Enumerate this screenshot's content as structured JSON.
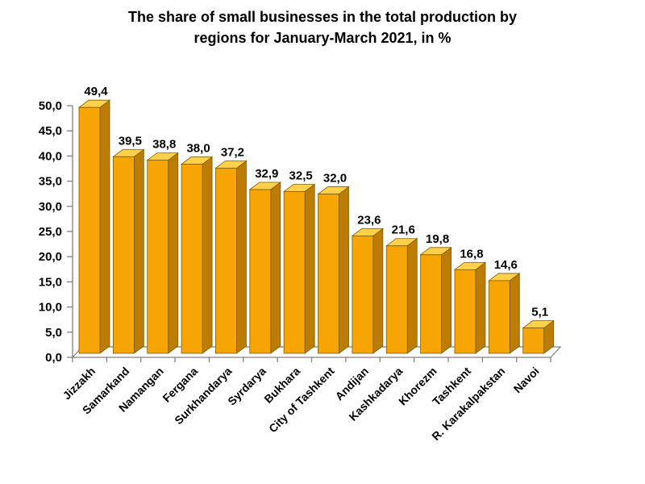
{
  "page": {
    "background_color": "#FFFFFF"
  },
  "title": {
    "line1": "The share of small businesses in the total production by",
    "line2": "regions for January-March 2021, in %"
  },
  "chart_data": {
    "type": "bar",
    "style": "3d-column",
    "title": "The share of small businesses in the total production by regions for January-March 2021, in %",
    "categories": [
      "Jizzakh",
      "Samarkand",
      "Namangan",
      "Fergana",
      "Surkhandarya",
      "Syrdarya",
      "Bukhara",
      "City of Tashkent",
      "Andijan",
      "Kashkadarya",
      "Khorezm",
      "Tashkent",
      "R. Karakalpakstan",
      "Navoi"
    ],
    "values": [
      49.4,
      39.5,
      38.8,
      38.0,
      37.2,
      32.9,
      32.5,
      32.0,
      23.6,
      21.6,
      19.8,
      16.8,
      14.6,
      5.1
    ],
    "value_labels": [
      "49,4",
      "39,5",
      "38,8",
      "38,0",
      "37,2",
      "32,9",
      "32,5",
      "32,0",
      "23,6",
      "21,6",
      "19,8",
      "16,8",
      "14,6",
      "5,1"
    ],
    "xlabel": "",
    "ylabel": "",
    "ylim": [
      0,
      50
    ],
    "ytick_step": 5,
    "ytick_labels": [
      "0,0",
      "5,0",
      "10,0",
      "15,0",
      "20,0",
      "25,0",
      "30,0",
      "35,0",
      "40,0",
      "45,0",
      "50,0"
    ],
    "grid": false,
    "legend": false,
    "decimal_separator": ",",
    "xtick_rotation_deg": 45,
    "colors": {
      "bar_front": "#F6A504",
      "bar_top": "#FFD04A",
      "bar_side": "#BD7D04",
      "bar_outline": "#7A5E00",
      "axis_line": "#808080",
      "label_text": "#000000"
    }
  }
}
